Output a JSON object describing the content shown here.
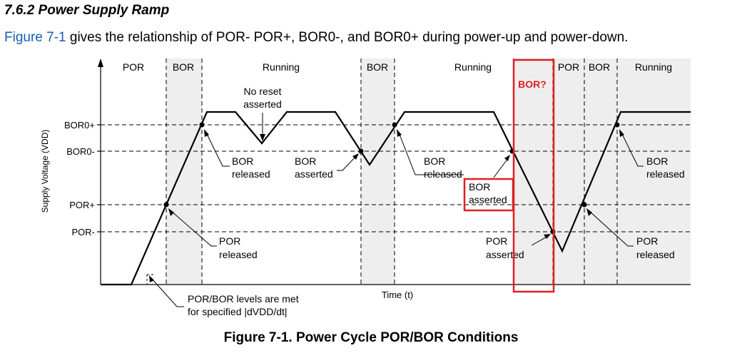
{
  "heading": "7.6.2 Power Supply Ramp",
  "intro": {
    "link_text": "Figure 7-1",
    "rest_text": " gives the relationship of POR- POR+, BOR0-, and BOR0+ during power-up and power-down."
  },
  "diagram": {
    "y_axis_label": "Supply Voltage (VDD)",
    "x_axis_label": "Time (t)",
    "levels": {
      "bor0_plus": "BOR0+",
      "bor0_minus": "BOR0-",
      "por_plus": "POR+",
      "por_minus": "POR-"
    },
    "regions": {
      "r1": "POR",
      "r2": "BOR",
      "r3": "Running",
      "r4": "BOR",
      "r5": "Running",
      "r6": "POR",
      "r7": "BOR",
      "r8": "Running"
    },
    "annotations": {
      "no_reset_1": "No reset",
      "no_reset_2": "asserted",
      "bor_released_a1": "BOR",
      "bor_released_a2": "released",
      "bor_asserted_a1": "BOR",
      "bor_asserted_a2": "asserted",
      "bor_released_b1": "BOR",
      "bor_released_b2": "released",
      "bor_asserted_b1": "BOR",
      "bor_asserted_b2": "asserted",
      "bor_released_c1": "BOR",
      "bor_released_c2": "released",
      "por_released_a1": "POR",
      "por_released_a2": "released",
      "por_asserted_1": "POR",
      "por_asserted_2": "asserted",
      "por_released_b1": "POR",
      "por_released_b2": "released",
      "levels_met_1": "POR/BOR levels are met",
      "levels_met_2": "for specified |dVDD/dt|"
    },
    "highlight_label": "BOR?",
    "colors": {
      "highlight": "#e02020",
      "shade": "#eeeeee",
      "link": "#1a5fb4"
    }
  },
  "caption": "Figure 7-1. Power Cycle POR/BOR Conditions"
}
